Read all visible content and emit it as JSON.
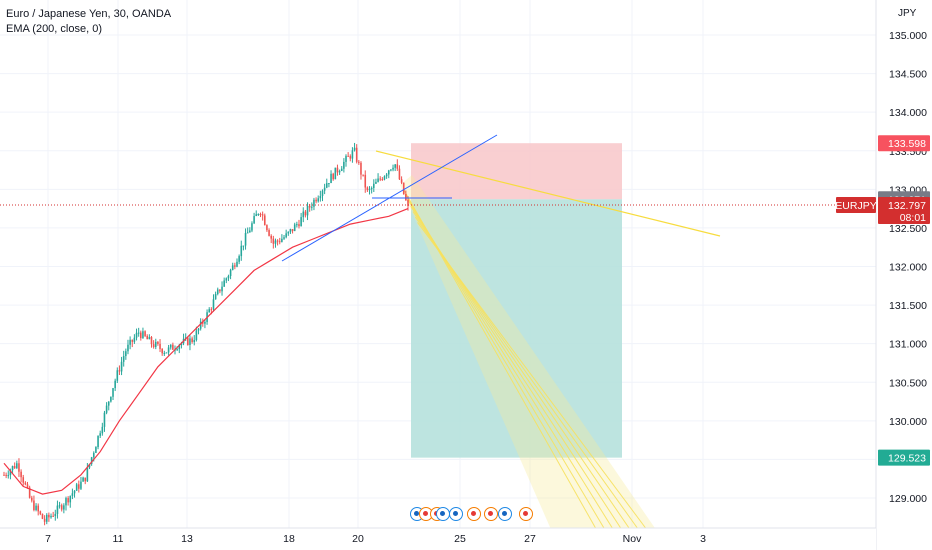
{
  "header": {
    "symbol_line": "Euro / Japanese Yen, 30, OANDA",
    "indicator_line": "EMA (200, close, 0)"
  },
  "price_axis": {
    "unit": "JPY",
    "ticks": [
      "135.000",
      "134.500",
      "134.000",
      "133.500",
      "133.000",
      "132.500",
      "132.000",
      "131.500",
      "131.000",
      "130.500",
      "130.000",
      "129.500",
      "129.000"
    ]
  },
  "price_labels": {
    "stop": "133.598",
    "entry": "132.871",
    "symbol": "EURJPY",
    "last": "132.797",
    "countdown": "08:01",
    "target": "129.523"
  },
  "time_axis": {
    "ticks": [
      "7",
      "11",
      "13",
      "18",
      "20",
      "25",
      "27",
      "Nov",
      "3"
    ]
  },
  "events": [
    "gear-icon",
    "flag-icon",
    "flag-icon",
    "gear-icon",
    "gear-icon",
    "flag-icon",
    "flag-icon",
    "gear-icon",
    "flag-icon"
  ],
  "colors": {
    "up": "#26a69a",
    "down": "#ef5350",
    "ema": "#f23645",
    "trendline": "#2962ff",
    "fib": "#f7dc3f",
    "risk_zone": "#f8c7c9",
    "reward_zone": "#b2dfdb",
    "last_price": "#d32f2f",
    "entry_label": "#787b86"
  },
  "chart_data": {
    "type": "candlestick",
    "title": "Euro / Japanese Yen, 30, OANDA",
    "ylim": [
      128.7,
      135.3
    ],
    "xlabel": "",
    "ylabel": "JPY",
    "grid": true,
    "x_ticks": [
      "7",
      "11",
      "13",
      "18",
      "20",
      "25",
      "27",
      "Nov",
      "3"
    ],
    "series": [
      {
        "name": "EMA (200, close, 0)",
        "values": [
          129.45,
          129.15,
          129.05,
          129.1,
          129.3,
          129.6,
          130.0,
          130.35,
          130.7,
          130.95,
          131.2,
          131.45,
          131.7,
          131.95,
          132.1,
          132.25,
          132.35,
          132.45,
          132.55,
          132.6,
          132.65,
          132.75
        ]
      }
    ],
    "price_path": [
      129.3,
      129.45,
      128.95,
      128.7,
      128.85,
      129.05,
      129.25,
      129.8,
      130.4,
      130.9,
      131.15,
      131.0,
      130.9,
      131.0,
      131.05,
      131.35,
      131.7,
      132.0,
      132.4,
      132.75,
      132.3,
      132.4,
      132.6,
      132.85,
      133.1,
      133.3,
      133.5,
      132.95,
      133.15,
      133.35,
      132.75
    ],
    "position": {
      "stop": 133.598,
      "entry": 132.871,
      "target": 129.523
    },
    "last_price": 132.797,
    "countdown": "08:01"
  }
}
